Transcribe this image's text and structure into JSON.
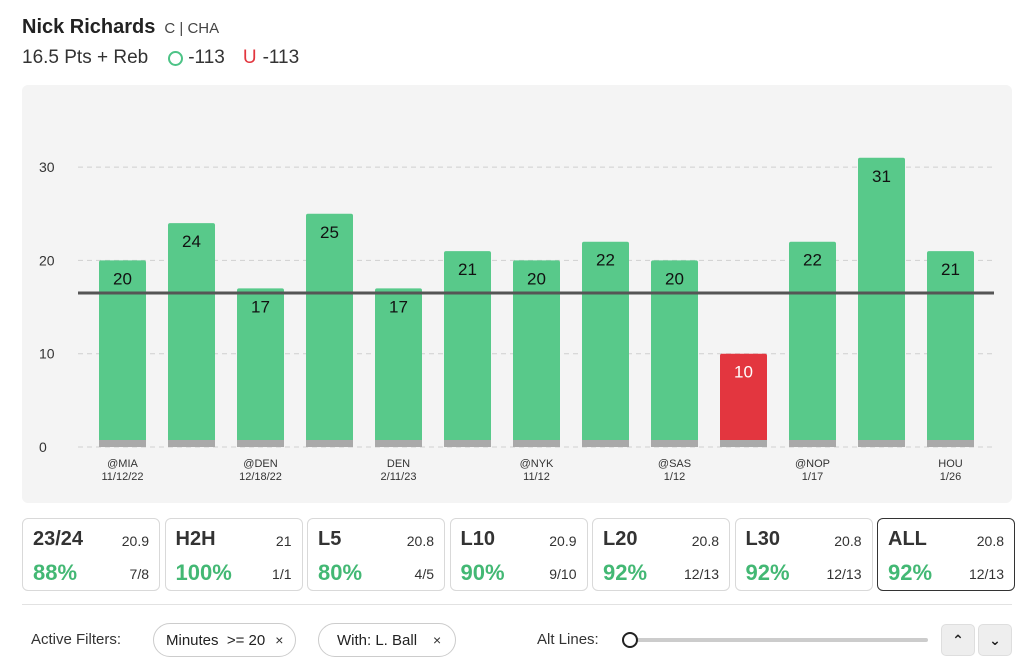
{
  "header": {
    "player_name": "Nick Richards",
    "position_team": "C | CHA",
    "prop": "16.5 Pts + Reb",
    "over_odds": "-113",
    "under_symbol": "U",
    "under_odds": "-113"
  },
  "colors": {
    "hit": "#58c98a",
    "miss": "#e3363f",
    "line": "#555555"
  },
  "chart_data": {
    "type": "bar",
    "line_value": 16.5,
    "ylim": [
      0,
      33
    ],
    "yticks": [
      0,
      10,
      20,
      30
    ],
    "values": [
      20,
      24,
      17,
      25,
      17,
      21,
      20,
      22,
      20,
      10,
      22,
      31,
      21
    ],
    "bar_labels": [
      "20",
      "24",
      "17",
      "25",
      "17",
      "21",
      "20",
      "22",
      "20",
      "10",
      "22",
      "31",
      "21"
    ],
    "x_labels": [
      {
        "opp": "@MIA",
        "date": "11/12/22"
      },
      {
        "opp": "",
        "date": ""
      },
      {
        "opp": "@DEN",
        "date": "12/18/22"
      },
      {
        "opp": "",
        "date": ""
      },
      {
        "opp": "DEN",
        "date": "2/11/23"
      },
      {
        "opp": "",
        "date": ""
      },
      {
        "opp": "@NYK",
        "date": "11/12"
      },
      {
        "opp": "",
        "date": ""
      },
      {
        "opp": "@SAS",
        "date": "1/12"
      },
      {
        "opp": "",
        "date": ""
      },
      {
        "opp": "@NOP",
        "date": "1/17"
      },
      {
        "opp": "",
        "date": ""
      },
      {
        "opp": "HOU",
        "date": "1/26"
      }
    ],
    "grid": true
  },
  "cards": [
    {
      "label": "23/24",
      "avg": "20.9",
      "pct": "88%",
      "record": "7/8",
      "active": false
    },
    {
      "label": "H2H",
      "avg": "21",
      "pct": "100%",
      "record": "1/1",
      "active": false
    },
    {
      "label": "L5",
      "avg": "20.8",
      "pct": "80%",
      "record": "4/5",
      "active": false
    },
    {
      "label": "L10",
      "avg": "20.9",
      "pct": "90%",
      "record": "9/10",
      "active": false
    },
    {
      "label": "L20",
      "avg": "20.8",
      "pct": "92%",
      "record": "12/13",
      "active": false
    },
    {
      "label": "L30",
      "avg": "20.8",
      "pct": "92%",
      "record": "12/13",
      "active": false
    },
    {
      "label": "ALL",
      "avg": "20.8",
      "pct": "92%",
      "record": "12/13",
      "active": true
    }
  ],
  "filters": {
    "label": "Active Filters:",
    "chips": [
      {
        "text": "Minutes  >= 20",
        "close": "×"
      },
      {
        "text": "With: L. Ball",
        "close": "×"
      }
    ]
  },
  "alt_lines": {
    "label": "Alt Lines:",
    "value_fraction": 0
  },
  "icons": {
    "up": "chevron-up-icon",
    "down": "chevron-down-icon"
  }
}
